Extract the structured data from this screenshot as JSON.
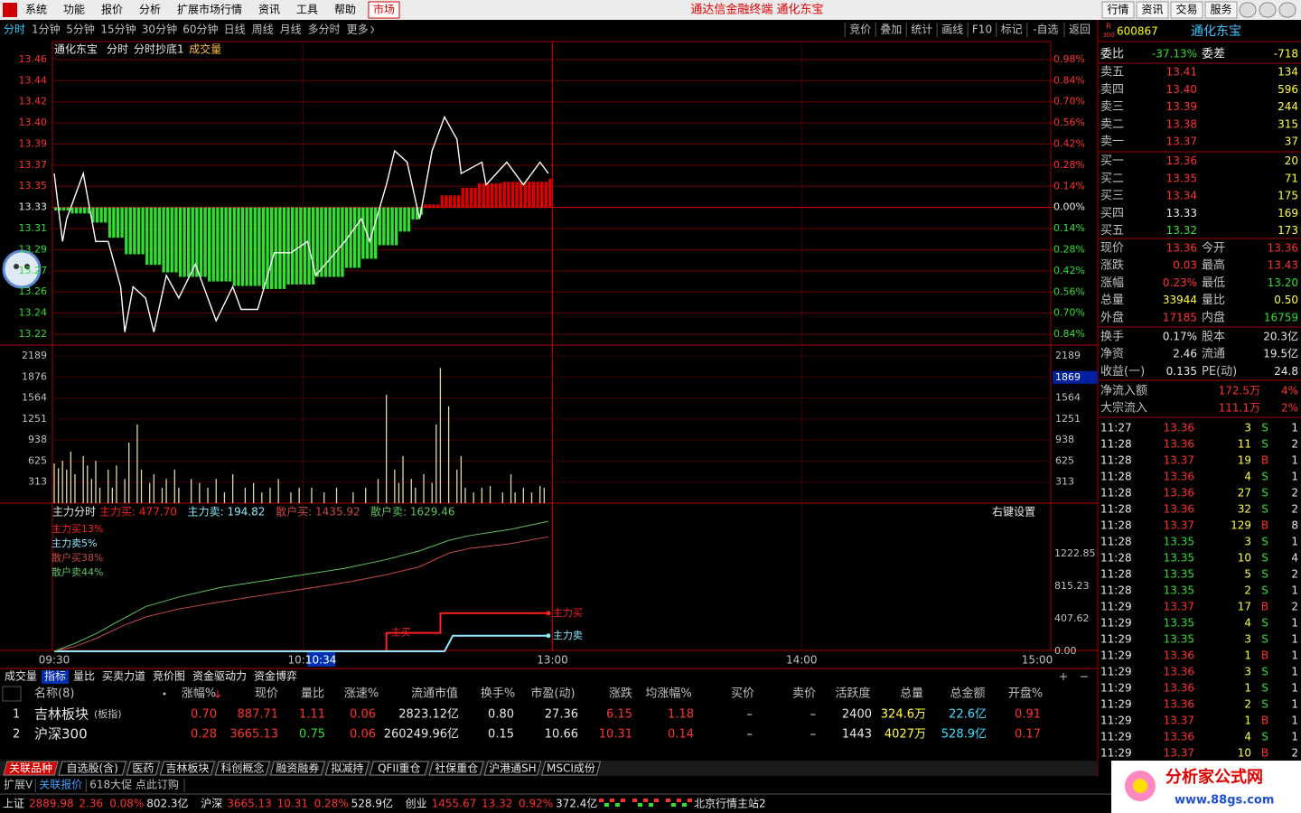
{
  "menu": {
    "items": [
      "系统",
      "功能",
      "报价",
      "分析",
      "扩展市场行情",
      "资讯",
      "工具",
      "帮助"
    ],
    "market": "市场"
  },
  "app_title": "通达信金融终端  通化东宝",
  "top_buttons": [
    "行情",
    "资讯",
    "交易",
    "服务"
  ],
  "periods": {
    "items": [
      "分时",
      "1分钟",
      "5分钟",
      "15分钟",
      "30分钟",
      "60分钟",
      "日线",
      "周线",
      "月线",
      "多分时",
      "更多"
    ],
    "active": 0
  },
  "tools": [
    "竞价",
    "叠加",
    "统计",
    "画线",
    "F10",
    "标记",
    "-自选",
    "返回"
  ],
  "chart_data": {
    "type": "line",
    "title": "通化东宝",
    "labels": [
      "分时",
      "分时抄底1",
      "成交量"
    ],
    "xlim": [
      0,
      240
    ],
    "xticks": [
      {
        "value": 0,
        "label": "09:30"
      },
      {
        "value": 60,
        "label": "10:30"
      },
      {
        "value": 120,
        "label": "13:00"
      },
      {
        "value": 180,
        "label": "14:00"
      },
      {
        "value": 240,
        "label": "15:00"
      }
    ],
    "cursor": {
      "value": 64,
      "label": "10:34"
    },
    "ylim": [
      13.2085,
      13.4765
    ],
    "yticks": [
      {
        "value": 13.4606,
        "label": "13.46"
      },
      {
        "value": 13.442,
        "label": "13.44"
      },
      {
        "value": 13.4233,
        "label": "13.42"
      },
      {
        "value": 13.4046,
        "label": "13.40"
      },
      {
        "value": 13.386,
        "label": "13.39"
      },
      {
        "value": 13.3673,
        "label": "13.37"
      },
      {
        "value": 13.3487,
        "label": "13.35"
      },
      13.33,
      {
        "value": 13.3113,
        "label": "13.31"
      },
      {
        "value": 13.2927,
        "label": "13.29"
      },
      {
        "value": 13.274,
        "label": "13.27"
      },
      {
        "value": 13.2554,
        "label": "13.26"
      },
      {
        "value": 13.2367,
        "label": "13.24"
      },
      {
        "value": 13.2181,
        "label": "13.22"
      }
    ],
    "y2lim": [
      -0.9115,
      1.099
    ],
    "y2ticks": [
      {
        "value": 0.98,
        "label": "0.98%"
      },
      {
        "value": 0.84,
        "label": "0.84%"
      },
      {
        "value": 0.7,
        "label": "0.70%"
      },
      {
        "value": 0.56,
        "label": "0.56%"
      },
      {
        "value": 0.42,
        "label": "0.42%"
      },
      {
        "value": 0.28,
        "label": "0.28%"
      },
      {
        "value": 0.14,
        "label": "0.14%"
      },
      {
        "value": 0,
        "label": "0.00%"
      },
      {
        "value": -0.14,
        "label": "0.14%"
      },
      {
        "value": -0.28,
        "label": "0.28%"
      },
      {
        "value": -0.42,
        "label": "0.42%"
      },
      {
        "value": -0.56,
        "label": "0.56%"
      },
      {
        "value": -0.7,
        "label": "0.70%"
      },
      {
        "value": -0.84,
        "label": "0.84%"
      }
    ],
    "price": {
      "color": "#ffffff",
      "x": [
        0,
        2,
        3,
        7,
        10,
        13,
        16,
        17,
        19,
        22,
        24,
        27,
        30,
        34,
        39,
        43,
        45,
        49,
        53,
        57,
        61,
        63,
        70,
        74,
        76,
        80,
        82,
        85,
        88,
        91,
        94,
        97,
        98,
        103,
        104,
        109,
        113,
        117,
        119
      ],
      "values": [
        13.36,
        13.3,
        13.32,
        13.36,
        13.3,
        13.3,
        13.26,
        13.22,
        13.26,
        13.25,
        13.22,
        13.27,
        13.25,
        13.28,
        13.23,
        13.26,
        13.24,
        13.24,
        13.29,
        13.29,
        13.3,
        13.27,
        13.3,
        13.32,
        13.3,
        13.35,
        13.38,
        13.37,
        13.32,
        13.38,
        13.41,
        13.39,
        13.36,
        13.37,
        13.35,
        13.37,
        13.35,
        13.37,
        13.36
      ]
    },
    "flow": {
      "axis": "y2",
      "x": [
        0,
        4,
        9,
        13,
        17,
        22,
        26,
        30,
        37,
        43,
        50,
        56,
        63,
        70,
        74,
        78,
        83,
        86,
        88,
        89,
        93,
        98,
        102,
        108,
        115,
        119
      ],
      "values": [
        -0.02,
        -0.04,
        -0.1,
        -0.2,
        -0.31,
        -0.38,
        -0.43,
        -0.46,
        -0.49,
        -0.52,
        -0.54,
        -0.51,
        -0.46,
        -0.4,
        -0.34,
        -0.25,
        -0.16,
        -0.08,
        -0.05,
        0.02,
        0.08,
        0.13,
        0.16,
        0.17,
        0.17,
        0.19
      ]
    },
    "volume": {
      "ylim": [
        0,
        2350
      ],
      "yticks": [
        313,
        625,
        938,
        1251,
        1564,
        1876,
        2189
      ],
      "current": 1869,
      "x": [
        0,
        1,
        2,
        3,
        4,
        5,
        7,
        8,
        9,
        10,
        11,
        13,
        14,
        15,
        17,
        18,
        20,
        21,
        23,
        24,
        26,
        27,
        29,
        30,
        33,
        35,
        37,
        39,
        41,
        43,
        46,
        48,
        50,
        52,
        54,
        57,
        59,
        62,
        65,
        68,
        72,
        75,
        78,
        80,
        82,
        83,
        84,
        86,
        87,
        89,
        91,
        92,
        93,
        95,
        97,
        98,
        99,
        101,
        103,
        105,
        108,
        110,
        111,
        113,
        115,
        117,
        118
      ],
      "values": [
        590,
        520,
        630,
        500,
        765,
        430,
        700,
        560,
        360,
        630,
        230,
        500,
        230,
        560,
        360,
        900,
        1170,
        500,
        300,
        430,
        230,
        360,
        500,
        230,
        360,
        300,
        230,
        360,
        160,
        430,
        230,
        300,
        160,
        230,
        360,
        160,
        230,
        230,
        160,
        230,
        160,
        230,
        360,
        1610,
        500,
        300,
        700,
        360,
        230,
        430,
        300,
        1170,
        2010,
        1440,
        500,
        700,
        230,
        160,
        230,
        255,
        160,
        430,
        160,
        230,
        160,
        255,
        230
      ]
    },
    "indicator": {
      "title": "主力分时",
      "readouts": [
        "主力买: 477.70",
        "主力卖: 194.82",
        "散户买: 1435.92",
        "散户卖: 1629.46"
      ],
      "settings": "右键设置",
      "ylim": [
        0,
        1823
      ],
      "yticks": [
        {
          "value": 0,
          "label": "0.00"
        },
        407.62,
        815.23,
        1222.85
      ],
      "series": [
        {
          "name": "主力买13%",
          "color": "#ff2020",
          "x": [
            0,
            80,
            80,
            93,
            93,
            119
          ],
          "values": [
            0,
            0,
            230,
            230,
            477.7,
            477.7
          ],
          "start_label": "主买",
          "end_label": "主力买"
        },
        {
          "name": "主力卖5%",
          "color": "#8fe8ff",
          "x": [
            0,
            94,
            96,
            119
          ],
          "values": [
            0,
            0,
            194.82,
            194.82
          ],
          "end_label": "主力卖"
        },
        {
          "name": "散户买38%",
          "color": "#c84848",
          "x": [
            0,
            5,
            10,
            17,
            22,
            30,
            40,
            50,
            60,
            70,
            80,
            88,
            95,
            100,
            110,
            119
          ],
          "values": [
            0,
            60,
            160,
            330,
            430,
            530,
            620,
            700,
            780,
            860,
            960,
            1060,
            1230,
            1290,
            1350,
            1435.92
          ]
        },
        {
          "name": "散户卖44%",
          "color": "#60c060",
          "x": [
            0,
            5,
            10,
            17,
            22,
            30,
            40,
            50,
            60,
            70,
            80,
            88,
            95,
            100,
            110,
            119
          ],
          "values": [
            0,
            100,
            220,
            420,
            560,
            680,
            800,
            880,
            960,
            1040,
            1150,
            1260,
            1390,
            1450,
            1530,
            1629.46
          ]
        }
      ]
    }
  },
  "quote": {
    "badge": [
      "R",
      "300"
    ],
    "code": "600867",
    "name": "通化东宝",
    "weibi": [
      "委比",
      "-37.13%",
      "委差",
      "-718"
    ],
    "book": [
      [
        "卖五",
        "13.41",
        "134"
      ],
      [
        "卖四",
        "13.40",
        "596"
      ],
      [
        "卖三",
        "13.39",
        "244"
      ],
      [
        "卖二",
        "13.38",
        "315"
      ],
      [
        "卖一",
        "13.37",
        "37"
      ],
      [
        "买一",
        "13.36",
        "20"
      ],
      [
        "买二",
        "13.35",
        "71"
      ],
      [
        "买三",
        "13.34",
        "175"
      ],
      [
        "买四",
        "13.33",
        "169"
      ],
      [
        "买五",
        "13.32",
        "173"
      ]
    ],
    "stats": [
      [
        "现价",
        "13.36",
        "今开",
        "13.36"
      ],
      [
        "涨跌",
        "0.03",
        "最高",
        "13.43"
      ],
      [
        "涨幅",
        "0.23%",
        "最低",
        "13.20"
      ],
      [
        "总量",
        "33944",
        "量比",
        "0.50"
      ],
      [
        "外盘",
        "17185",
        "内盘",
        "16759"
      ],
      [
        "换手",
        "0.17%",
        "股本",
        "20.3亿"
      ],
      [
        "净资",
        "2.46",
        "流通",
        "19.5亿"
      ],
      [
        "收益(一)",
        "0.135",
        "PE(动)",
        "24.8"
      ]
    ],
    "flows": [
      [
        "净流入额",
        "172.5万",
        "4%"
      ],
      [
        "大宗流入",
        "111.1万",
        "2%"
      ]
    ],
    "trades": [
      [
        "11:27",
        "13.36",
        "3",
        "S",
        "1"
      ],
      [
        "11:28",
        "13.36",
        "11",
        "S",
        "2"
      ],
      [
        "11:28",
        "13.37",
        "19",
        "B",
        "1"
      ],
      [
        "11:28",
        "13.36",
        "4",
        "S",
        "1"
      ],
      [
        "11:28",
        "13.36",
        "27",
        "S",
        "2"
      ],
      [
        "11:28",
        "13.36",
        "32",
        "S",
        "2"
      ],
      [
        "11:28",
        "13.37",
        "129",
        "B",
        "8"
      ],
      [
        "11:28",
        "13.35",
        "3",
        "S",
        "1"
      ],
      [
        "11:28",
        "13.35",
        "10",
        "S",
        "4"
      ],
      [
        "11:28",
        "13.35",
        "5",
        "S",
        "2"
      ],
      [
        "11:28",
        "13.35",
        "2",
        "S",
        "1"
      ],
      [
        "11:29",
        "13.37",
        "17",
        "B",
        "2"
      ],
      [
        "11:29",
        "13.35",
        "4",
        "S",
        "1"
      ],
      [
        "11:29",
        "13.35",
        "3",
        "S",
        "1"
      ],
      [
        "11:29",
        "13.36",
        "1",
        "B",
        "1"
      ],
      [
        "11:29",
        "13.36",
        "3",
        "S",
        "1"
      ],
      [
        "11:29",
        "13.36",
        "1",
        "S",
        "1"
      ],
      [
        "11:29",
        "13.36",
        "2",
        "S",
        "1"
      ],
      [
        "11:29",
        "13.37",
        "1",
        "B",
        "1"
      ],
      [
        "11:29",
        "13.36",
        "4",
        "S",
        "1"
      ],
      [
        "11:29",
        "13.37",
        "10",
        "B",
        "2"
      ]
    ]
  },
  "sub_tabs": {
    "items": [
      "成交量",
      "指标",
      "量比",
      "买卖力道",
      "竞价图",
      "资金驱动力",
      "资金博弈"
    ],
    "active": 1
  },
  "table": {
    "columns": [
      "名称(8)",
      "涨幅%",
      "现价",
      "量比",
      "涨速%",
      "流通市值",
      "换手%",
      "市盈(动)",
      "涨跌",
      "均涨幅%",
      "买价",
      "卖价",
      "活跃度",
      "总量",
      "总金额",
      "开盘%"
    ],
    "rows": [
      {
        "no": "1",
        "name": "吉林板块",
        "tag": "(板指)",
        "cells": [
          "0.70",
          "887.71",
          "1.11",
          "0.06",
          "2823.12亿",
          "0.80",
          "27.36",
          "6.15",
          "1.18",
          "–",
          "–",
          "2400",
          "324.6万",
          "22.6亿",
          "0.91"
        ]
      },
      {
        "no": "2",
        "name": "沪深300",
        "cells": [
          "0.28",
          "3665.13",
          "0.75",
          "0.06",
          "260249.96亿",
          "0.15",
          "10.66",
          "10.31",
          "0.14",
          "–",
          "–",
          "1443",
          "4027万",
          "528.9亿",
          "0.17"
        ]
      }
    ]
  },
  "sector_tabs": [
    "关联品种",
    "自选股(含)",
    "医药",
    "吉林板块",
    "科创概念",
    "融资融券",
    "拟减持",
    "QFII重仓",
    "社保重仓",
    "沪港通SH",
    "MSCI成份"
  ],
  "ext_bar": [
    "扩展V",
    "关联报价",
    "618大促 点此订购"
  ],
  "status": {
    "items": [
      "上证",
      "2889.98",
      "2.36",
      "0.08%",
      "802.3亿",
      "沪深",
      "3665.13",
      "10.31",
      "0.28%",
      "528.9亿",
      "创业",
      "1455.67",
      "13.32",
      "0.92%",
      "372.4亿"
    ],
    "server": "北京行情主站2"
  },
  "watermark": {
    "name": "分析家公式网",
    "url": "www.88gs.com"
  }
}
